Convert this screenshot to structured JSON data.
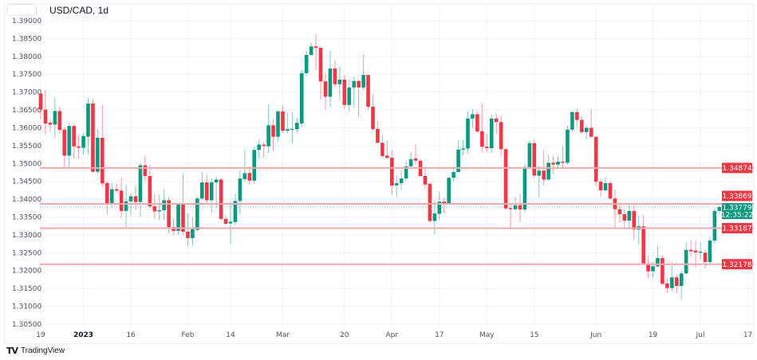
{
  "header": {
    "title": "USD/CAD, 1d"
  },
  "brand": {
    "icon": "tradingview-logo-icon",
    "logo_text": "TV",
    "name": "TradingView"
  },
  "colors": {
    "up": "#089981",
    "down": "#f23645",
    "level_line": "#f7a8ae",
    "grid": "#f2f3f5",
    "axis_text": "#50535e"
  },
  "chart_data": {
    "type": "candlestick",
    "title": "USD/CAD, 1d",
    "ylim": [
      1.3035,
      1.3905
    ],
    "grid": true,
    "y_ticks": [
      "1.39000",
      "1.38500",
      "1.38000",
      "1.37500",
      "1.37000",
      "1.36500",
      "1.36000",
      "1.35500",
      "1.35000",
      "1.34500",
      "1.34000",
      "1.33500",
      "1.33000",
      "1.32500",
      "1.32000",
      "1.31500",
      "1.31000",
      "1.30500"
    ],
    "x_ticks": [
      {
        "label": "19",
        "date": "2022-12-19",
        "bold": false
      },
      {
        "label": "2023",
        "date": "2023-01-02",
        "bold": true
      },
      {
        "label": "16",
        "date": "2023-01-16",
        "bold": false
      },
      {
        "label": "Feb",
        "date": "2023-02-01",
        "bold": false
      },
      {
        "label": "14",
        "date": "2023-02-14",
        "bold": false
      },
      {
        "label": "Mar",
        "date": "2023-03-01",
        "bold": false
      },
      {
        "label": "20",
        "date": "2023-03-20",
        "bold": false
      },
      {
        "label": "Apr",
        "date": "2023-04-03",
        "bold": false
      },
      {
        "label": "17",
        "date": "2023-04-17",
        "bold": false
      },
      {
        "label": "May",
        "date": "2023-05-01",
        "bold": false
      },
      {
        "label": "15",
        "date": "2023-05-15",
        "bold": false
      },
      {
        "label": "Jun",
        "date": "2023-06-01",
        "bold": false
      },
      {
        "label": "19",
        "date": "2023-06-19",
        "bold": false
      },
      {
        "label": "Jul",
        "date": "2023-07-03",
        "bold": false
      },
      {
        "label": "17",
        "date": "2023-07-17",
        "bold": false
      }
    ],
    "levels": [
      {
        "price": 1.34874,
        "label": "1.34874"
      },
      {
        "price": 1.33869,
        "label": "1.33869"
      },
      {
        "price": 1.33187,
        "label": "1.33187"
      },
      {
        "price": 1.32178,
        "label": "1.32178"
      }
    ],
    "current": {
      "price": 1.33779,
      "label": "1.33779",
      "countdown": "12:35:22"
    },
    "columns": [
      "date",
      "open",
      "high",
      "low",
      "close"
    ],
    "candles": [
      [
        "2022-12-19",
        1.3696,
        1.3696,
        1.3625,
        1.3651
      ],
      [
        "2022-12-20",
        1.3651,
        1.3705,
        1.358,
        1.3612
      ],
      [
        "2022-12-21",
        1.3614,
        1.3627,
        1.359,
        1.3609
      ],
      [
        "2022-12-22",
        1.3609,
        1.3685,
        1.3572,
        1.3647
      ],
      [
        "2022-12-23",
        1.3647,
        1.3659,
        1.3583,
        1.3594
      ],
      [
        "2022-12-27",
        1.3595,
        1.3601,
        1.3486,
        1.3522
      ],
      [
        "2022-12-28",
        1.3522,
        1.3612,
        1.3486,
        1.3605
      ],
      [
        "2022-12-29",
        1.3605,
        1.361,
        1.3514,
        1.3548
      ],
      [
        "2022-12-30",
        1.3548,
        1.3581,
        1.3514,
        1.3544
      ],
      [
        "2023-01-02",
        1.3544,
        1.3586,
        1.3525,
        1.3577
      ],
      [
        "2023-01-03",
        1.3575,
        1.3685,
        1.3525,
        1.3668
      ],
      [
        "2023-01-04",
        1.3668,
        1.3681,
        1.3473,
        1.3477
      ],
      [
        "2023-01-05",
        1.3477,
        1.3596,
        1.3471,
        1.3572
      ],
      [
        "2023-01-06",
        1.3572,
        1.3664,
        1.3434,
        1.3444
      ],
      [
        "2023-01-09",
        1.3445,
        1.345,
        1.3357,
        1.3389
      ],
      [
        "2023-01-10",
        1.3389,
        1.3445,
        1.3376,
        1.3428
      ],
      [
        "2023-01-11",
        1.3428,
        1.3445,
        1.3416,
        1.3424
      ],
      [
        "2023-01-12",
        1.3424,
        1.346,
        1.3347,
        1.3367
      ],
      [
        "2023-01-13",
        1.3367,
        1.344,
        1.3322,
        1.3394
      ],
      [
        "2023-01-16",
        1.3394,
        1.3415,
        1.3354,
        1.3408
      ],
      [
        "2023-01-17",
        1.3408,
        1.3438,
        1.3371,
        1.3392
      ],
      [
        "2023-01-18",
        1.3392,
        1.3501,
        1.3352,
        1.3495
      ],
      [
        "2023-01-19",
        1.3495,
        1.3521,
        1.3449,
        1.3465
      ],
      [
        "2023-01-20",
        1.3465,
        1.3496,
        1.3374,
        1.338
      ],
      [
        "2023-01-23",
        1.338,
        1.3417,
        1.3345,
        1.3366
      ],
      [
        "2023-01-24",
        1.3366,
        1.3414,
        1.3341,
        1.3369
      ],
      [
        "2023-01-25",
        1.3369,
        1.3429,
        1.3341,
        1.3397
      ],
      [
        "2023-01-26",
        1.3397,
        1.3408,
        1.3304,
        1.3322
      ],
      [
        "2023-01-27",
        1.3322,
        1.3346,
        1.33,
        1.3311
      ],
      [
        "2023-01-30",
        1.3311,
        1.339,
        1.33,
        1.3387
      ],
      [
        "2023-01-31",
        1.3387,
        1.3471,
        1.33,
        1.3309
      ],
      [
        "2023-02-01",
        1.3309,
        1.336,
        1.3268,
        1.3291
      ],
      [
        "2023-02-02",
        1.3291,
        1.3349,
        1.3267,
        1.3316
      ],
      [
        "2023-02-03",
        1.3314,
        1.3408,
        1.3311,
        1.3402
      ],
      [
        "2023-02-06",
        1.3402,
        1.3476,
        1.3398,
        1.3447
      ],
      [
        "2023-02-07",
        1.3447,
        1.3469,
        1.3386,
        1.3397
      ],
      [
        "2023-02-08",
        1.3397,
        1.3458,
        1.3361,
        1.3447
      ],
      [
        "2023-02-09",
        1.3447,
        1.3464,
        1.3374,
        1.3455
      ],
      [
        "2023-02-10",
        1.3455,
        1.346,
        1.3341,
        1.3345
      ],
      [
        "2023-02-13",
        1.3345,
        1.3356,
        1.3328,
        1.3331
      ],
      [
        "2023-02-14",
        1.3332,
        1.3392,
        1.3274,
        1.3337
      ],
      [
        "2023-02-15",
        1.3336,
        1.3415,
        1.3329,
        1.3395
      ],
      [
        "2023-02-16",
        1.3395,
        1.3481,
        1.3357,
        1.3458
      ],
      [
        "2023-02-17",
        1.3456,
        1.354,
        1.3449,
        1.3473
      ],
      [
        "2023-02-20",
        1.3473,
        1.3493,
        1.3441,
        1.3452
      ],
      [
        "2023-02-21",
        1.3452,
        1.3548,
        1.3443,
        1.3538
      ],
      [
        "2023-02-22",
        1.3538,
        1.3568,
        1.3516,
        1.3553
      ],
      [
        "2023-02-23",
        1.3553,
        1.356,
        1.3517,
        1.3549
      ],
      [
        "2023-02-24",
        1.3548,
        1.3666,
        1.3529,
        1.3607
      ],
      [
        "2023-02-27",
        1.3607,
        1.3625,
        1.3534,
        1.3575
      ],
      [
        "2023-02-28",
        1.3575,
        1.3648,
        1.3562,
        1.3646
      ],
      [
        "2023-03-01",
        1.3646,
        1.3659,
        1.3586,
        1.3592
      ],
      [
        "2023-03-02",
        1.3592,
        1.3642,
        1.3585,
        1.3596
      ],
      [
        "2023-03-03",
        1.3595,
        1.3644,
        1.3555,
        1.3597
      ],
      [
        "2023-03-06",
        1.3596,
        1.3629,
        1.3585,
        1.3614
      ],
      [
        "2023-03-07",
        1.3612,
        1.3762,
        1.3601,
        1.3753
      ],
      [
        "2023-03-08",
        1.3753,
        1.3815,
        1.3746,
        1.3804
      ],
      [
        "2023-03-09",
        1.3804,
        1.3838,
        1.3802,
        1.3828
      ],
      [
        "2023-03-10",
        1.3828,
        1.3863,
        1.3762,
        1.3824
      ],
      [
        "2023-03-13",
        1.3824,
        1.3824,
        1.3678,
        1.373
      ],
      [
        "2023-03-14",
        1.373,
        1.3753,
        1.3652,
        1.3687
      ],
      [
        "2023-03-15",
        1.3687,
        1.3815,
        1.3659,
        1.3766
      ],
      [
        "2023-03-16",
        1.3766,
        1.3789,
        1.3715,
        1.3722
      ],
      [
        "2023-03-17",
        1.3722,
        1.3772,
        1.3678,
        1.3735
      ],
      [
        "2023-03-20",
        1.3735,
        1.3748,
        1.3653,
        1.3664
      ],
      [
        "2023-03-21",
        1.3664,
        1.3737,
        1.3646,
        1.3713
      ],
      [
        "2023-03-22",
        1.3713,
        1.3744,
        1.3657,
        1.3731
      ],
      [
        "2023-03-23",
        1.3731,
        1.3735,
        1.3631,
        1.3713
      ],
      [
        "2023-03-24",
        1.3713,
        1.3806,
        1.3705,
        1.3748
      ],
      [
        "2023-03-27",
        1.3748,
        1.3748,
        1.365,
        1.3659
      ],
      [
        "2023-03-28",
        1.3659,
        1.3694,
        1.3592,
        1.3596
      ],
      [
        "2023-03-29",
        1.3597,
        1.3616,
        1.3557,
        1.3558
      ],
      [
        "2023-03-30",
        1.3558,
        1.3579,
        1.3516,
        1.3521
      ],
      [
        "2023-03-31",
        1.3522,
        1.3564,
        1.3512,
        1.3516
      ],
      [
        "2023-04-03",
        1.3516,
        1.3537,
        1.3412,
        1.3438
      ],
      [
        "2023-04-04",
        1.3439,
        1.3467,
        1.3408,
        1.3445
      ],
      [
        "2023-04-05",
        1.3445,
        1.3482,
        1.3427,
        1.3458
      ],
      [
        "2023-04-06",
        1.3458,
        1.3507,
        1.3452,
        1.3492
      ],
      [
        "2023-04-07",
        1.3492,
        1.3532,
        1.3486,
        1.3512
      ],
      [
        "2023-04-10",
        1.3514,
        1.3554,
        1.3497,
        1.3508
      ],
      [
        "2023-04-11",
        1.3508,
        1.3512,
        1.3464,
        1.3465
      ],
      [
        "2023-04-12",
        1.3465,
        1.3486,
        1.3429,
        1.3441
      ],
      [
        "2023-04-13",
        1.3443,
        1.3446,
        1.3334,
        1.3339
      ],
      [
        "2023-04-14",
        1.3339,
        1.3397,
        1.3302,
        1.336
      ],
      [
        "2023-04-17",
        1.3359,
        1.3421,
        1.3343,
        1.3393
      ],
      [
        "2023-04-18",
        1.3393,
        1.3404,
        1.336,
        1.3387
      ],
      [
        "2023-04-19",
        1.3387,
        1.3462,
        1.3386,
        1.346
      ],
      [
        "2023-04-20",
        1.346,
        1.349,
        1.3449,
        1.3476
      ],
      [
        "2023-04-21",
        1.3476,
        1.3564,
        1.3475,
        1.3539
      ],
      [
        "2023-04-24",
        1.3539,
        1.3566,
        1.3523,
        1.3542
      ],
      [
        "2023-04-25",
        1.3542,
        1.3647,
        1.3527,
        1.3626
      ],
      [
        "2023-04-26",
        1.3626,
        1.3653,
        1.36,
        1.3638
      ],
      [
        "2023-04-27",
        1.3638,
        1.3646,
        1.3586,
        1.359
      ],
      [
        "2023-04-28",
        1.359,
        1.3668,
        1.3532,
        1.3547
      ],
      [
        "2023-05-01",
        1.3547,
        1.3583,
        1.3532,
        1.3543
      ],
      [
        "2023-05-02",
        1.3543,
        1.3637,
        1.353,
        1.3626
      ],
      [
        "2023-05-03",
        1.3626,
        1.3641,
        1.3584,
        1.3616
      ],
      [
        "2023-05-04",
        1.3616,
        1.3633,
        1.3519,
        1.354
      ],
      [
        "2023-05-05",
        1.354,
        1.3541,
        1.3372,
        1.3374
      ],
      [
        "2023-05-08",
        1.3375,
        1.3389,
        1.3316,
        1.3372
      ],
      [
        "2023-05-09",
        1.3372,
        1.3406,
        1.3367,
        1.3383
      ],
      [
        "2023-05-10",
        1.3383,
        1.3415,
        1.3336,
        1.3371
      ],
      [
        "2023-05-11",
        1.3371,
        1.3497,
        1.3363,
        1.349
      ],
      [
        "2023-05-12",
        1.349,
        1.3564,
        1.3489,
        1.3557
      ],
      [
        "2023-05-15",
        1.3557,
        1.3568,
        1.346,
        1.3466
      ],
      [
        "2023-05-16",
        1.3466,
        1.3493,
        1.3404,
        1.348
      ],
      [
        "2023-05-17",
        1.348,
        1.3536,
        1.3438,
        1.3455
      ],
      [
        "2023-05-18",
        1.3455,
        1.3525,
        1.3452,
        1.3502
      ],
      [
        "2023-05-19",
        1.3502,
        1.3523,
        1.3471,
        1.3497
      ],
      [
        "2023-05-22",
        1.3497,
        1.3523,
        1.3487,
        1.3505
      ],
      [
        "2023-05-23",
        1.3505,
        1.3549,
        1.3486,
        1.3502
      ],
      [
        "2023-05-24",
        1.3502,
        1.3606,
        1.3497,
        1.3595
      ],
      [
        "2023-05-25",
        1.3595,
        1.3646,
        1.3588,
        1.3644
      ],
      [
        "2023-05-26",
        1.3644,
        1.3655,
        1.3603,
        1.3622
      ],
      [
        "2023-05-29",
        1.3622,
        1.3633,
        1.3584,
        1.3588
      ],
      [
        "2023-05-30",
        1.3588,
        1.3609,
        1.3568,
        1.36
      ],
      [
        "2023-05-31",
        1.36,
        1.3651,
        1.3572,
        1.3575
      ],
      [
        "2023-06-01",
        1.3575,
        1.3576,
        1.3438,
        1.3449
      ],
      [
        "2023-06-02",
        1.3449,
        1.3456,
        1.3408,
        1.3425
      ],
      [
        "2023-06-05",
        1.3425,
        1.3462,
        1.3419,
        1.3445
      ],
      [
        "2023-06-06",
        1.3445,
        1.345,
        1.3398,
        1.3402
      ],
      [
        "2023-06-07",
        1.3402,
        1.3427,
        1.3322,
        1.3372
      ],
      [
        "2023-06-08",
        1.3372,
        1.3391,
        1.3334,
        1.3358
      ],
      [
        "2023-06-09",
        1.3358,
        1.3371,
        1.3316,
        1.334
      ],
      [
        "2023-06-12",
        1.334,
        1.3383,
        1.3316,
        1.3367
      ],
      [
        "2023-06-13",
        1.3367,
        1.3382,
        1.3287,
        1.3315
      ],
      [
        "2023-06-14",
        1.3315,
        1.3354,
        1.3274,
        1.3324
      ],
      [
        "2023-06-15",
        1.3324,
        1.3356,
        1.3215,
        1.322
      ],
      [
        "2023-06-16",
        1.322,
        1.3241,
        1.3177,
        1.3198
      ],
      [
        "2023-06-19",
        1.3198,
        1.3222,
        1.318,
        1.3212
      ],
      [
        "2023-06-20",
        1.3212,
        1.327,
        1.3209,
        1.3235
      ],
      [
        "2023-06-21",
        1.3235,
        1.3242,
        1.3159,
        1.3163
      ],
      [
        "2023-06-22",
        1.3164,
        1.3178,
        1.3138,
        1.3151
      ],
      [
        "2023-06-23",
        1.3151,
        1.3224,
        1.3144,
        1.3181
      ],
      [
        "2023-06-26",
        1.3181,
        1.3189,
        1.3137,
        1.3157
      ],
      [
        "2023-06-27",
        1.3157,
        1.32,
        1.3118,
        1.3192
      ],
      [
        "2023-06-28",
        1.3192,
        1.3279,
        1.3189,
        1.3258
      ],
      [
        "2023-06-29",
        1.3258,
        1.3285,
        1.3239,
        1.3254
      ],
      [
        "2023-06-30",
        1.3256,
        1.3285,
        1.3209,
        1.3251
      ],
      [
        "2023-07-03",
        1.325,
        1.3278,
        1.3229,
        1.3253
      ],
      [
        "2023-07-04",
        1.325,
        1.3259,
        1.3205,
        1.3224
      ],
      [
        "2023-07-05",
        1.3224,
        1.3294,
        1.322,
        1.3284
      ],
      [
        "2023-07-06",
        1.3284,
        1.3374,
        1.3276,
        1.3367
      ],
      [
        "2023-07-07",
        1.3367,
        1.3388,
        1.336,
        1.33779
      ]
    ]
  }
}
